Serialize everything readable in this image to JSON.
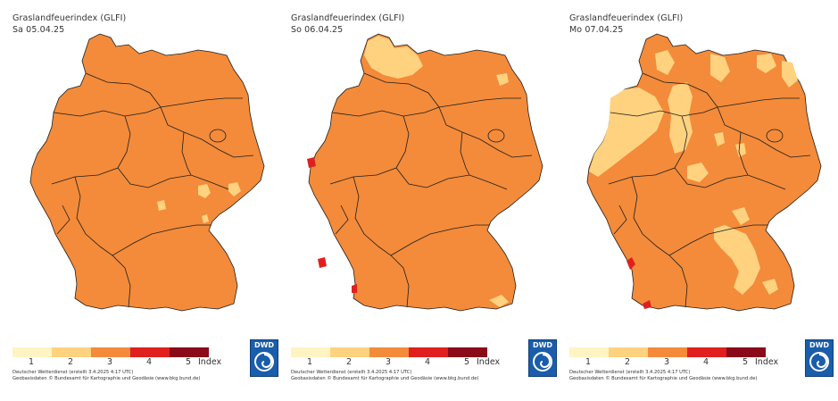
{
  "colors": {
    "class1": "#fff4c2",
    "class2": "#ffd27f",
    "class3": "#f38b3a",
    "class4": "#e0201f",
    "class5": "#8a0a1a",
    "border": "#1e1e1e",
    "dwd_blue": "#1a5dab"
  },
  "legend": {
    "labels": [
      "1",
      "2",
      "3",
      "4",
      "5"
    ],
    "unit": "Index"
  },
  "credits": {
    "line1": "Deutscher Wetterdienst (erstellt 3.4.2025 4:17 UTC)",
    "line2": "Geobasisdaten © Bundesamt für Kartographie und Geodäsie (www.bkg.bund.de)"
  },
  "logo": {
    "text": "DWD"
  },
  "panels": [
    {
      "title": "Graslandfeuerindex (GLFI)",
      "date": "Sa 05.04.25"
    },
    {
      "title": "Graslandfeuerindex (GLFI)",
      "date": "So 06.04.25"
    },
    {
      "title": "Graslandfeuerindex (GLFI)",
      "date": "Mo 07.04.25"
    }
  ]
}
